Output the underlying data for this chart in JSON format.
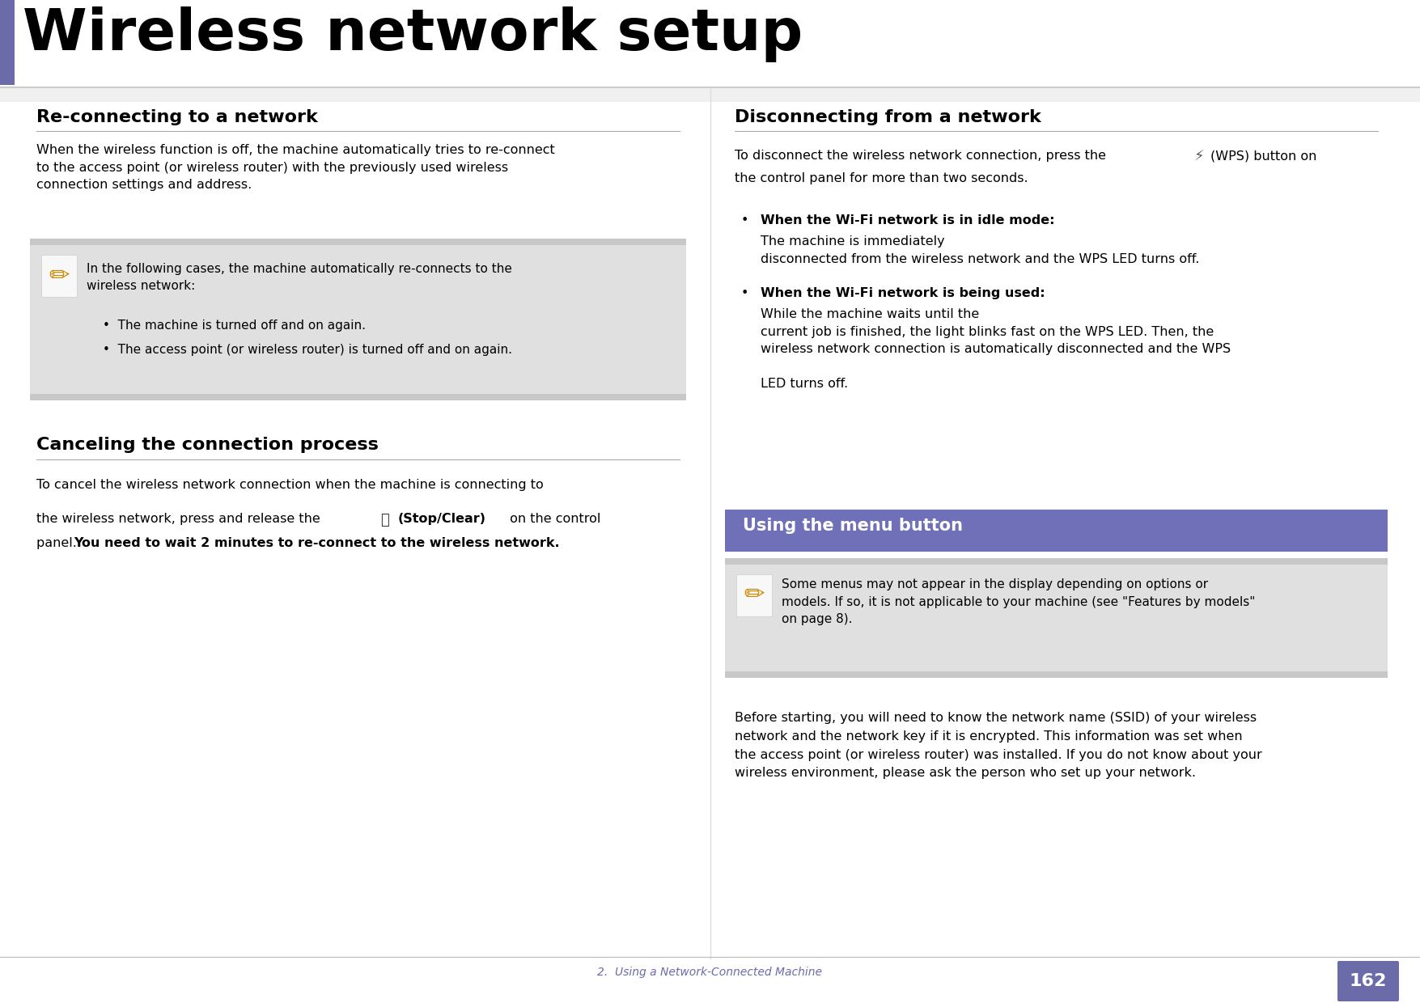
{
  "page_bg": "#ffffff",
  "title": "Wireless network setup",
  "title_color": "#000000",
  "title_bar_color": "#6b6baa",
  "title_fontsize": 52,
  "section_header_fontsize": 16,
  "body_fontsize": 11.5,
  "note_fontsize": 11,
  "footer_text": "2.  Using a Network-Connected Machine",
  "footer_page": "162",
  "footer_color": "#6b6baa",
  "page_num_bg": "#6b6baa",
  "note_bg": "#e0e0e0",
  "note_inner_bg": "#f5f5f5",
  "menu_button_bg": "#7070b8",
  "sections": {
    "reconnect_header": "Re-connecting to a network",
    "cancel_header": "Canceling the connection process",
    "disconnect_header": "Disconnecting from a network",
    "menu_button_label": "Using the menu button"
  }
}
